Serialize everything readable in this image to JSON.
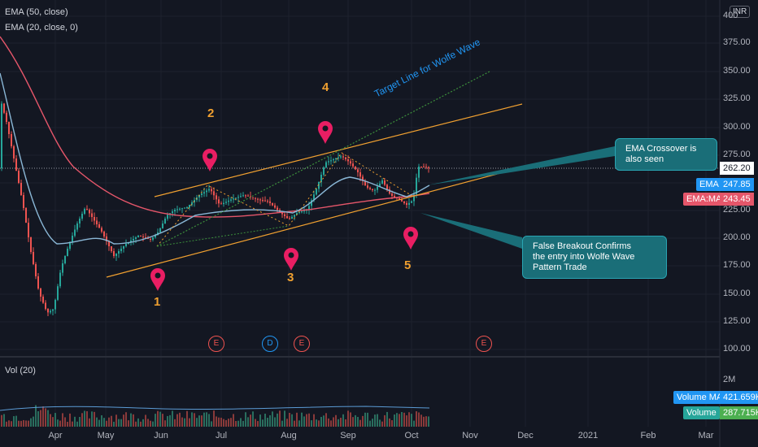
{
  "legend": {
    "ema50": "EMA (50, close)",
    "ema20": "EMA (20, close, 0)",
    "vol": "Vol (20)"
  },
  "currency": "INR",
  "y_axis": [
    "400",
    "375.00",
    "350.00",
    "325.00",
    "300.00",
    "275.00",
    "250.00",
    "225.00",
    "200.00",
    "175.00",
    "150.00",
    "125.00",
    "100.00"
  ],
  "vol_axis": "2M",
  "x_axis": [
    "Apr",
    "May",
    "Jun",
    "Jul",
    "Aug",
    "Sep",
    "Oct",
    "Nov",
    "Dec",
    "2021",
    "Feb",
    "Mar"
  ],
  "price_tags": {
    "last": "262.20",
    "ema_label": "EMA",
    "ema_value": "247.85",
    "emama_label": "EMA:MA",
    "emama_value": "243.45",
    "volma_label": "Volume MA",
    "volma_value": "421.659K",
    "vol_label": "Volume",
    "vol_value": "287.715K"
  },
  "wave_points": [
    "1",
    "2",
    "3",
    "4",
    "5"
  ],
  "target_line_text": "Target Line for Wolfe Wave",
  "callouts": {
    "ema": "EMA Crossover is also seen",
    "breakout_1": "False Breakout Confirms",
    "breakout_2": "the entry into Wolfe Wave Pattern Trade"
  },
  "events": [
    "E",
    "D",
    "E",
    "E"
  ],
  "colors": {
    "background": "#131722",
    "up": "#26a69a",
    "down": "#ef5350",
    "ema50": "#e5566a",
    "ema20": "#8ab7d6",
    "channel": "#f0a030",
    "target": "#3c8f3c",
    "marker": "#e91e63",
    "callout": "#1a6e78"
  }
}
